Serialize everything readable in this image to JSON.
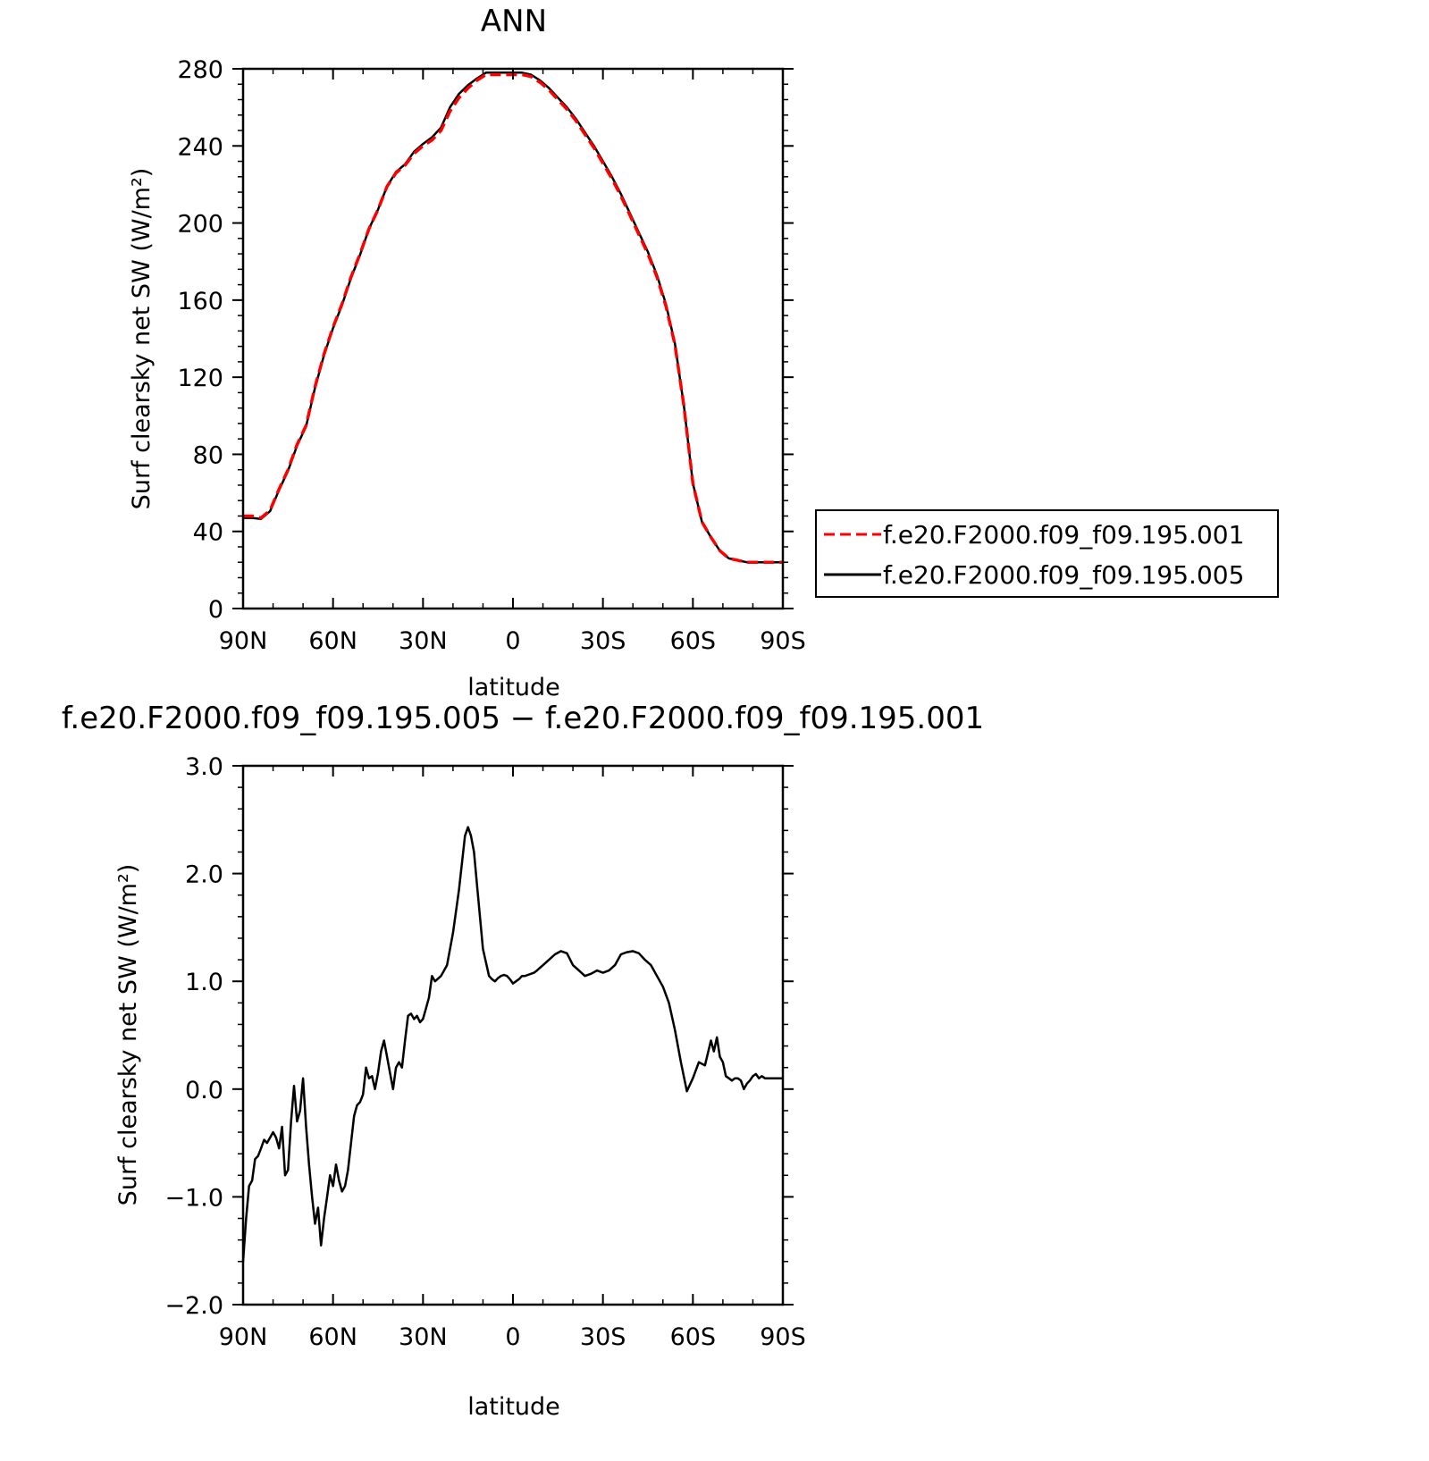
{
  "colors": {
    "series_dashed": "#ff0000",
    "series_solid": "#000000",
    "axes": "#000000",
    "background": "#ffffff"
  },
  "chart_data": [
    {
      "type": "line",
      "title": "ANN",
      "xlabel": "latitude",
      "ylabel": "Surf clearsky net SW (W/m²)",
      "xlim": [
        90,
        -90
      ],
      "ylim": [
        0,
        280
      ],
      "x_ticks": [
        90,
        60,
        30,
        0,
        -30,
        -60,
        -90
      ],
      "x_tick_labels": [
        "90N",
        "60N",
        "30N",
        "0",
        "30S",
        "60S",
        "90S"
      ],
      "y_ticks": [
        0,
        40,
        80,
        120,
        160,
        200,
        240,
        280
      ],
      "y_tick_labels": [
        "0",
        "40",
        "80",
        "120",
        "160",
        "200",
        "240",
        "280"
      ],
      "grid": false,
      "legend": {
        "placement": "right",
        "entries": [
          "f.e20.F2000.f09_f09.195.001",
          "f.e20.F2000.f09_f09.195.005"
        ]
      },
      "x": [
        90,
        87,
        84,
        81,
        78,
        75,
        72,
        69,
        66,
        63,
        60,
        57,
        54,
        51,
        48,
        45,
        42,
        39,
        36,
        33,
        30,
        27,
        24,
        21,
        18,
        15,
        12,
        9,
        6,
        3,
        0,
        -3,
        -6,
        -9,
        -12,
        -15,
        -18,
        -21,
        -24,
        -27,
        -30,
        -33,
        -36,
        -39,
        -42,
        -45,
        -48,
        -51,
        -54,
        -57,
        -60,
        -63,
        -66,
        -69,
        -72,
        -75,
        -78,
        -81,
        -84,
        -87,
        -90
      ],
      "series": [
        {
          "name": "f.e20.F2000.f09_f09.195.001",
          "style": "dashed",
          "color": "#ff0000",
          "values": [
            48,
            48,
            47,
            51,
            62,
            72,
            85,
            95,
            115,
            132,
            146,
            158,
            172,
            184,
            197,
            207,
            219,
            226,
            230,
            236,
            240,
            243,
            248,
            258,
            265,
            270,
            274,
            277,
            277,
            277,
            277,
            277,
            276,
            273,
            269,
            264,
            259,
            253,
            246,
            239,
            231,
            223,
            214,
            204,
            194,
            184,
            172,
            157,
            137,
            105,
            65,
            45,
            37,
            30,
            26,
            25,
            24,
            24,
            24,
            24,
            24
          ]
        },
        {
          "name": "f.e20.F2000.f09_f09.195.005",
          "style": "solid",
          "color": "#000000",
          "values": [
            47,
            47,
            46.5,
            50.5,
            61.5,
            71.5,
            84.5,
            94.5,
            114.5,
            131.5,
            145.5,
            157.5,
            171.5,
            183.5,
            197,
            207,
            219,
            226.5,
            230.5,
            237,
            241,
            244.5,
            249.5,
            260,
            267,
            271.5,
            275,
            278,
            278,
            278,
            278,
            278,
            277,
            274,
            270,
            265,
            260,
            254,
            247,
            240,
            232,
            224,
            215,
            205,
            195,
            185,
            173,
            158,
            137.5,
            105,
            65,
            45,
            37,
            30,
            26,
            25,
            24,
            24,
            24,
            24,
            24
          ]
        }
      ]
    },
    {
      "type": "line",
      "title": "f.e20.F2000.f09_f09.195.005 − f.e20.F2000.f09_f09.195.001",
      "xlabel": "latitude",
      "ylabel": "Surf clearsky net SW (W/m²)",
      "xlim": [
        90,
        -90
      ],
      "ylim": [
        -2.0,
        3.0
      ],
      "x_ticks": [
        90,
        60,
        30,
        0,
        -30,
        -60,
        -90
      ],
      "x_tick_labels": [
        "90N",
        "60N",
        "30N",
        "0",
        "30S",
        "60S",
        "90S"
      ],
      "y_ticks": [
        -2.0,
        -1.0,
        0.0,
        1.0,
        2.0,
        3.0
      ],
      "y_tick_labels": [
        "−2.0",
        "−1.0",
        "0.0",
        "1.0",
        "2.0",
        "3.0"
      ],
      "grid": false,
      "x": [
        90,
        89,
        88,
        87,
        86,
        85,
        84,
        83,
        82,
        81,
        80,
        79,
        78,
        77,
        76,
        75,
        74,
        73,
        72,
        71,
        70,
        69,
        68,
        67,
        66,
        65,
        64,
        63,
        62,
        61,
        60,
        59,
        58,
        57,
        56,
        55,
        54,
        53,
        52,
        51,
        50,
        49,
        48,
        47,
        46,
        45,
        44,
        43,
        42,
        41,
        40,
        39,
        38,
        37,
        36,
        35,
        34,
        33,
        32,
        31,
        30,
        29,
        28,
        27,
        26,
        24,
        22,
        20,
        18,
        16,
        15,
        14,
        13,
        12,
        10,
        8,
        7,
        6,
        5,
        4,
        3,
        2,
        1,
        0,
        -1,
        -2,
        -3,
        -4,
        -5,
        -6,
        -7,
        -8,
        -10,
        -12,
        -14,
        -16,
        -18,
        -20,
        -22,
        -24,
        -26,
        -28,
        -30,
        -32,
        -34,
        -36,
        -38,
        -40,
        -42,
        -44,
        -46,
        -48,
        -50,
        -52,
        -54,
        -56,
        -58,
        -60,
        -62,
        -64,
        -66,
        -67,
        -68,
        -69,
        -70,
        -71,
        -72,
        -73,
        -74,
        -75,
        -76,
        -77,
        -78,
        -79,
        -80,
        -81,
        -82,
        -83,
        -84,
        -85,
        -86,
        -87,
        -88,
        -89,
        -90
      ],
      "series": [
        {
          "name": "",
          "style": "solid",
          "color": "#000000",
          "values": [
            -1.6,
            -1.2,
            -0.9,
            -0.85,
            -0.65,
            -0.62,
            -0.55,
            -0.47,
            -0.5,
            -0.45,
            -0.4,
            -0.45,
            -0.55,
            -0.35,
            -0.8,
            -0.75,
            -0.3,
            0.03,
            -0.3,
            -0.2,
            0.1,
            -0.35,
            -0.7,
            -1.0,
            -1.25,
            -1.1,
            -1.45,
            -1.2,
            -1.0,
            -0.8,
            -0.9,
            -0.7,
            -0.85,
            -0.95,
            -0.9,
            -0.75,
            -0.5,
            -0.25,
            -0.15,
            -0.12,
            -0.05,
            0.2,
            0.1,
            0.12,
            0.0,
            0.15,
            0.35,
            0.45,
            0.3,
            0.15,
            0.0,
            0.2,
            0.25,
            0.2,
            0.45,
            0.68,
            0.7,
            0.65,
            0.68,
            0.62,
            0.65,
            0.75,
            0.85,
            1.05,
            1.0,
            1.05,
            1.15,
            1.45,
            1.85,
            2.35,
            2.43,
            2.35,
            2.2,
            1.9,
            1.3,
            1.05,
            1.02,
            1.0,
            1.03,
            1.05,
            1.06,
            1.05,
            1.02,
            0.98,
            1.0,
            1.02,
            1.05,
            1.05,
            1.06,
            1.07,
            1.08,
            1.1,
            1.15,
            1.2,
            1.25,
            1.28,
            1.26,
            1.15,
            1.1,
            1.05,
            1.07,
            1.1,
            1.08,
            1.1,
            1.15,
            1.25,
            1.27,
            1.28,
            1.26,
            1.2,
            1.15,
            1.05,
            0.95,
            0.8,
            0.55,
            0.25,
            -0.02,
            0.1,
            0.25,
            0.22,
            0.45,
            0.35,
            0.48,
            0.3,
            0.25,
            0.12,
            0.1,
            0.08,
            0.1,
            0.1,
            0.08,
            0.0,
            0.05,
            0.08,
            0.12,
            0.14,
            0.1,
            0.12,
            0.1,
            0.1,
            0.1,
            0.1,
            0.1,
            0.1,
            0.1
          ]
        }
      ]
    }
  ]
}
